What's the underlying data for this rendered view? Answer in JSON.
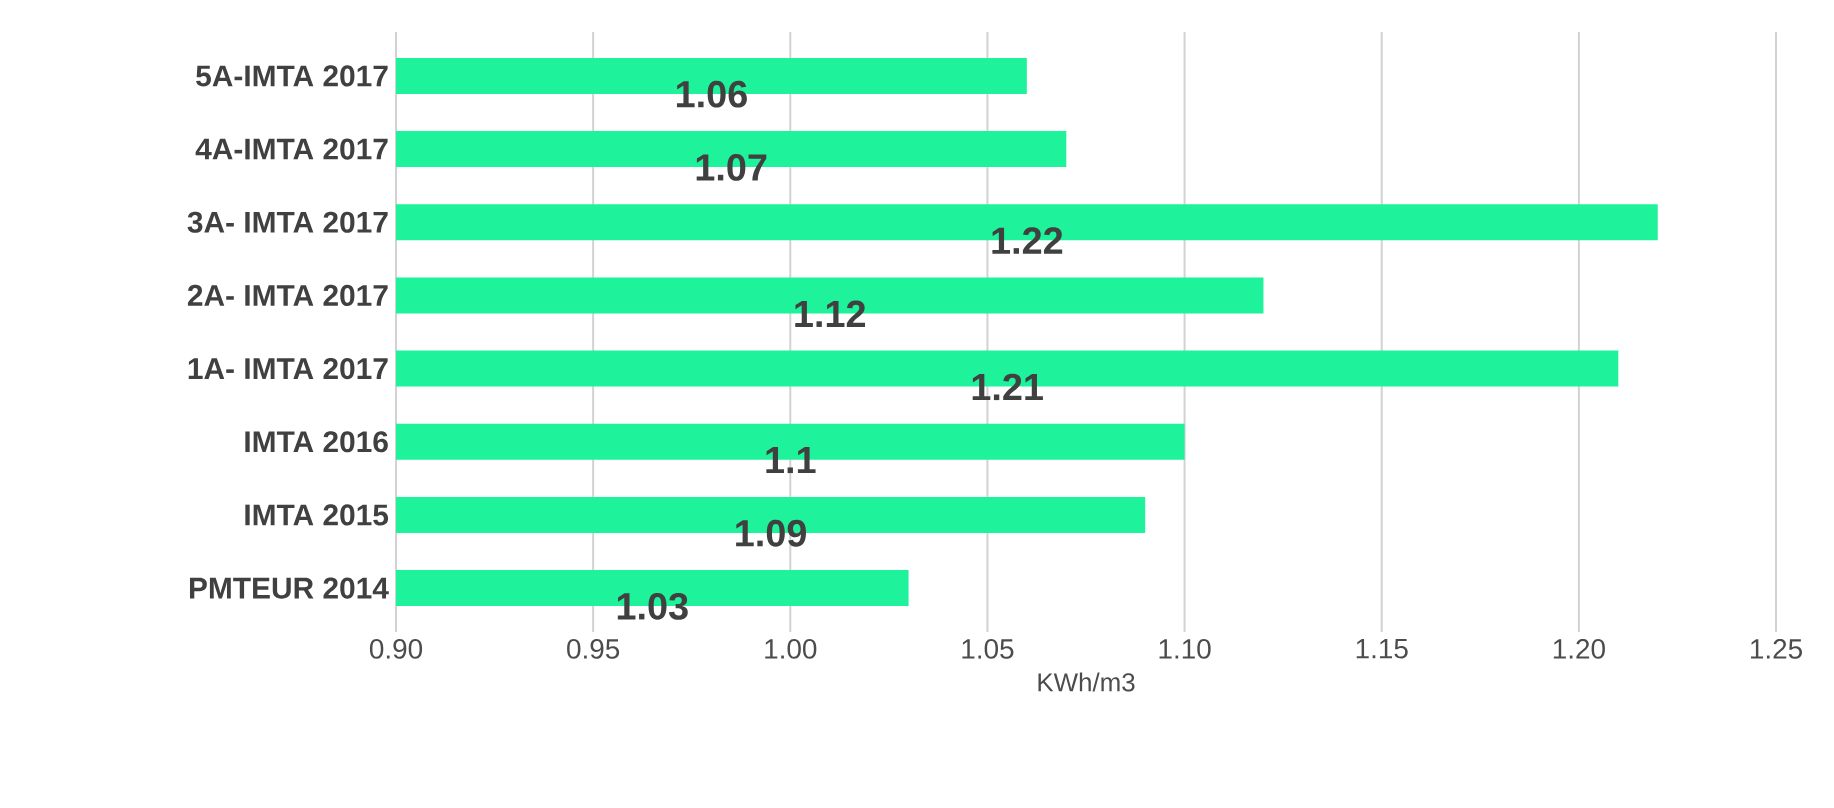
{
  "chart_data": {
    "type": "bar",
    "orientation": "horizontal",
    "xlabel": "KWh/m3",
    "categories": [
      "5A-IMTA 2017",
      "4A-IMTA 2017",
      "3A- IMTA 2017",
      "2A- IMTA  2017",
      "1A- IMTA  2017",
      "IMTA 2016",
      "IMTA 2015",
      "PMTEUR 2014"
    ],
    "values": [
      1.06,
      1.07,
      1.22,
      1.12,
      1.21,
      1.1,
      1.09,
      1.03
    ],
    "color": "#1ef29a",
    "xlim": [
      0.9,
      1.25
    ],
    "xticks": [
      {
        "value": 0.9,
        "label": "0.90"
      },
      {
        "value": 0.95,
        "label": "0.95"
      },
      {
        "value": 1.0,
        "label": "1.00"
      },
      {
        "value": 1.05,
        "label": "1.05"
      },
      {
        "value": 1.1,
        "label": "1.10"
      },
      {
        "value": 1.15,
        "label": "1.15"
      },
      {
        "value": 1.2,
        "label": "1.20"
      },
      {
        "value": 1.25,
        "label": "1.25"
      }
    ],
    "grid": "x",
    "data_labels": true
  }
}
